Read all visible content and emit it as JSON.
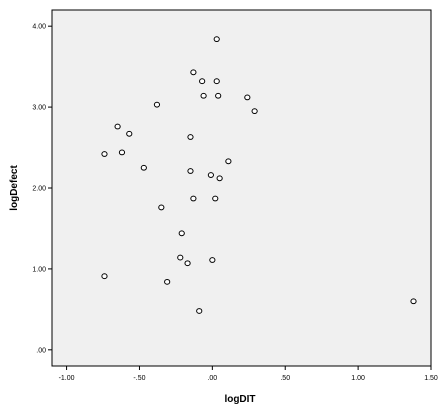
{
  "chart_data": {
    "type": "scatter",
    "title": "",
    "xlabel": "logDIT",
    "ylabel": "logDefect",
    "xlim": [
      -1.1,
      1.5
    ],
    "ylim": [
      -0.2,
      4.2
    ],
    "x_ticks": [
      -1.0,
      -0.5,
      0.0,
      0.5,
      1.0,
      1.5
    ],
    "y_ticks": [
      0.0,
      1.0,
      2.0,
      3.0,
      4.0
    ],
    "x_tick_labels": [
      "-1.00",
      "-.50",
      ".00",
      ".50",
      "1.00",
      "1.50"
    ],
    "y_tick_labels": [
      ".00",
      "1.00",
      "2.00",
      "3.00",
      "4.00"
    ],
    "grid": false,
    "legend": "none",
    "colors": {
      "plot_background": "#f0f0f0",
      "page_background": "#ffffff",
      "marker_stroke": "#000000",
      "marker_fill": "#ffffff"
    },
    "series": [
      {
        "points": [
          {
            "x": 0.03,
            "y": 3.84
          },
          {
            "x": -0.13,
            "y": 3.43
          },
          {
            "x": -0.07,
            "y": 3.32
          },
          {
            "x": 0.03,
            "y": 3.32
          },
          {
            "x": -0.06,
            "y": 3.14
          },
          {
            "x": 0.04,
            "y": 3.14
          },
          {
            "x": 0.24,
            "y": 3.12
          },
          {
            "x": 0.29,
            "y": 2.95
          },
          {
            "x": -0.38,
            "y": 3.03
          },
          {
            "x": -0.65,
            "y": 2.76
          },
          {
            "x": -0.57,
            "y": 2.67
          },
          {
            "x": -0.15,
            "y": 2.63
          },
          {
            "x": -0.62,
            "y": 2.44
          },
          {
            "x": -0.74,
            "y": 2.42
          },
          {
            "x": 0.11,
            "y": 2.33
          },
          {
            "x": -0.47,
            "y": 2.25
          },
          {
            "x": -0.15,
            "y": 2.21
          },
          {
            "x": -0.01,
            "y": 2.16
          },
          {
            "x": 0.05,
            "y": 2.12
          },
          {
            "x": -0.13,
            "y": 1.87
          },
          {
            "x": 0.02,
            "y": 1.87
          },
          {
            "x": -0.35,
            "y": 1.76
          },
          {
            "x": -0.21,
            "y": 1.44
          },
          {
            "x": -0.22,
            "y": 1.14
          },
          {
            "x": -0.17,
            "y": 1.07
          },
          {
            "x": 0.0,
            "y": 1.11
          },
          {
            "x": -0.74,
            "y": 0.91
          },
          {
            "x": -0.31,
            "y": 0.84
          },
          {
            "x": -0.09,
            "y": 0.48
          },
          {
            "x": 1.38,
            "y": 0.6
          }
        ]
      }
    ]
  }
}
